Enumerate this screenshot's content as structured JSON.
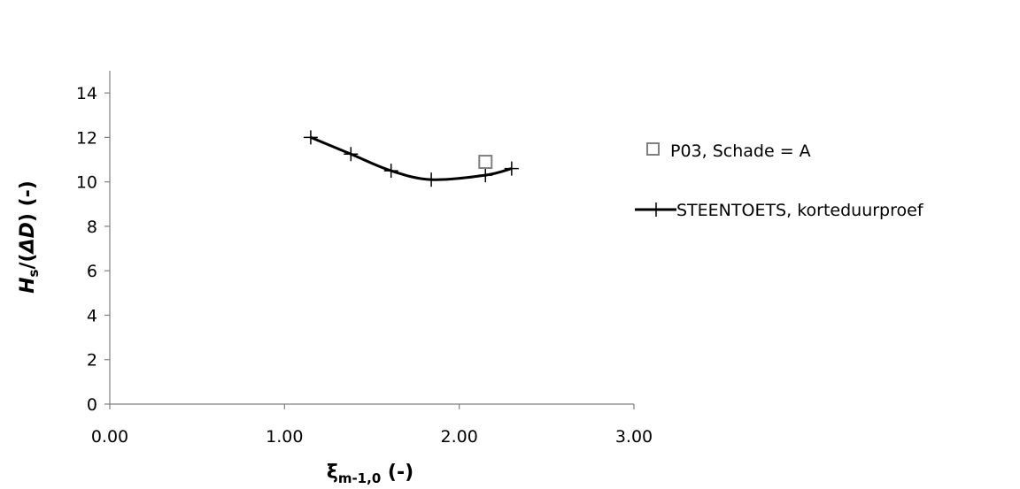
{
  "chart_data": {
    "type": "scatter",
    "title": "",
    "xlabel": {
      "symbol": "ξ",
      "subscript": "m-1,0",
      "suffix": " (-)"
    },
    "ylabel": {
      "symbol": "H",
      "subscript": "s",
      "middle": "/(",
      "delta_d": "ΔD",
      "suffix": ") (-)"
    },
    "xlim": [
      0,
      3
    ],
    "ylim": [
      0,
      15
    ],
    "x_ticks": [
      0,
      1,
      2,
      3
    ],
    "x_tick_labels": [
      "0.00",
      "1.00",
      "2.00",
      "3.00"
    ],
    "y_ticks": [
      0,
      2,
      4,
      6,
      8,
      10,
      12,
      14
    ],
    "y_tick_labels": [
      "0",
      "2",
      "4",
      "6",
      "8",
      "10",
      "12",
      "14"
    ],
    "grid": false,
    "legend_position": "right",
    "series": [
      {
        "name": "P03, Schade = A",
        "kind": "marker-square",
        "color": "#808080",
        "x": [
          2.15
        ],
        "y": [
          10.9
        ]
      },
      {
        "name": "STEENTOETS, korteduurproef",
        "kind": "line-plus",
        "color": "#000000",
        "x": [
          1.15,
          1.38,
          1.61,
          1.84,
          2.15,
          2.3
        ],
        "y": [
          12.0,
          11.25,
          10.5,
          10.1,
          10.3,
          10.6
        ]
      }
    ]
  }
}
